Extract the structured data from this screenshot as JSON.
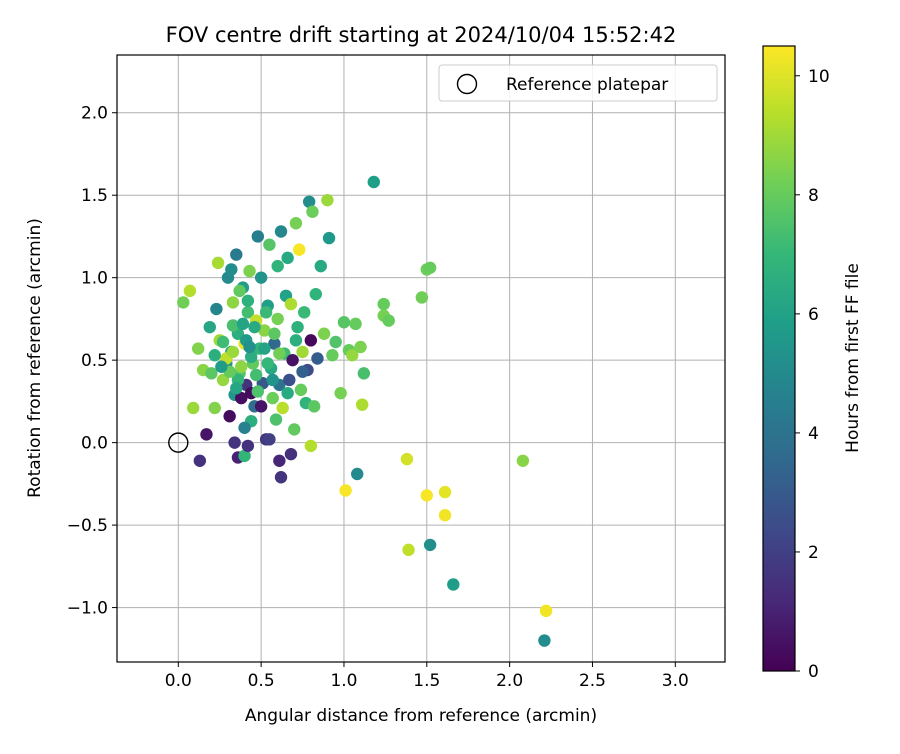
{
  "chart_data": {
    "type": "scatter",
    "title": "FOV centre drift starting at 2024/10/04 15:52:42",
    "xlabel": "Angular distance from reference (arcmin)",
    "ylabel": "Rotation from reference (arcmin)",
    "xlim": [
      -0.37,
      3.3
    ],
    "ylim": [
      -1.33,
      2.35
    ],
    "xticks": [
      0.0,
      0.5,
      1.0,
      1.5,
      2.0,
      2.5,
      3.0
    ],
    "xtick_labels": [
      "0.0",
      "0.5",
      "1.0",
      "1.5",
      "2.0",
      "2.5",
      "3.0"
    ],
    "yticks": [
      -1.0,
      -0.5,
      0.0,
      0.5,
      1.0,
      1.5,
      2.0
    ],
    "ytick_labels": [
      "−1.0",
      "−0.5",
      "0.0",
      "0.5",
      "1.0",
      "1.5",
      "2.0"
    ],
    "grid": true,
    "legend": {
      "placement": "top-right",
      "entries": [
        "Reference platepar"
      ]
    },
    "reference_point": {
      "x": 0.0,
      "y": 0.0
    },
    "colorbar": {
      "label": "Hours from first FF file",
      "colormap": "viridis",
      "range": [
        0,
        10.5
      ],
      "ticks": [
        0,
        2,
        4,
        6,
        8,
        10
      ],
      "tick_labels": [
        "0",
        "2",
        "4",
        "6",
        "8",
        "10"
      ],
      "stops": [
        "#440154",
        "#482878",
        "#3e4989",
        "#31688e",
        "#26828e",
        "#1f9e89",
        "#35b779",
        "#6ece58",
        "#b5de2b",
        "#fde725"
      ]
    },
    "points": [
      [
        0.03,
        0.85,
        8.2
      ],
      [
        0.07,
        0.92,
        9.3
      ],
      [
        0.09,
        0.21,
        8.9
      ],
      [
        0.12,
        0.57,
        8.5
      ],
      [
        0.13,
        -0.11,
        1.5
      ],
      [
        0.15,
        0.44,
        8.6
      ],
      [
        0.17,
        0.05,
        0.6
      ],
      [
        0.19,
        0.7,
        6.2
      ],
      [
        0.2,
        0.42,
        7.8
      ],
      [
        0.22,
        0.21,
        8.5
      ],
      [
        0.23,
        0.81,
        4.8
      ],
      [
        0.24,
        1.09,
        9.1
      ],
      [
        0.25,
        0.62,
        9.0
      ],
      [
        0.27,
        0.38,
        8.8
      ],
      [
        0.29,
        0.48,
        5.2
      ],
      [
        0.3,
        1.0,
        5.0
      ],
      [
        0.31,
        0.16,
        0.3
      ],
      [
        0.32,
        0.55,
        6.0
      ],
      [
        0.33,
        0.85,
        8.7
      ],
      [
        0.34,
        0.29,
        5.5
      ],
      [
        0.35,
        1.14,
        4.3
      ],
      [
        0.36,
        0.66,
        6.6
      ],
      [
        0.37,
        0.42,
        7.6
      ],
      [
        0.38,
        0.27,
        0.4
      ],
      [
        0.39,
        0.94,
        5.8
      ],
      [
        0.4,
        0.6,
        10.2
      ],
      [
        0.41,
        0.35,
        1.6
      ],
      [
        0.42,
        0.79,
        7.3
      ],
      [
        0.43,
        1.04,
        8.4
      ],
      [
        0.44,
        0.13,
        6.6
      ],
      [
        0.45,
        0.48,
        7.9
      ],
      [
        0.46,
        0.22,
        3.8
      ],
      [
        0.47,
        0.74,
        9.6
      ],
      [
        0.48,
        1.25,
        4.5
      ],
      [
        0.49,
        0.57,
        6.9
      ],
      [
        0.5,
        1.0,
        5.4
      ],
      [
        0.51,
        0.36,
        2.9
      ],
      [
        0.52,
        0.68,
        8.6
      ],
      [
        0.53,
        0.02,
        1.7
      ],
      [
        0.54,
        0.83,
        5.9
      ],
      [
        0.55,
        1.2,
        7.7
      ],
      [
        0.56,
        0.45,
        6.3
      ],
      [
        0.57,
        0.27,
        8.1
      ],
      [
        0.58,
        0.6,
        3.5
      ],
      [
        0.59,
        0.14,
        7.5
      ],
      [
        0.6,
        0.75,
        8.3
      ],
      [
        0.61,
        0.35,
        4.0
      ],
      [
        0.62,
        1.28,
        4.9
      ],
      [
        0.63,
        0.21,
        9.4
      ],
      [
        0.64,
        0.54,
        7.2
      ],
      [
        0.65,
        0.89,
        6.0
      ],
      [
        0.66,
        1.12,
        6.3
      ],
      [
        0.67,
        0.38,
        2.6
      ],
      [
        0.68,
        0.84,
        9.2
      ],
      [
        0.69,
        0.5,
        0.5
      ],
      [
        0.7,
        0.08,
        7.9
      ],
      [
        0.71,
        1.33,
        8.3
      ],
      [
        0.72,
        0.7,
        6.7
      ],
      [
        0.73,
        1.17,
        10.4
      ],
      [
        0.74,
        0.32,
        8.0
      ],
      [
        0.75,
        0.55,
        9.0
      ],
      [
        0.76,
        0.79,
        7.1
      ],
      [
        0.77,
        0.24,
        6.8
      ],
      [
        0.78,
        0.44,
        2.4
      ],
      [
        0.79,
        1.46,
        5.1
      ],
      [
        0.8,
        0.62,
        0.2
      ],
      [
        0.81,
        1.4,
        8.1
      ],
      [
        0.82,
        0.22,
        7.8
      ],
      [
        0.83,
        0.9,
        6.8
      ],
      [
        0.84,
        0.51,
        3.1
      ],
      [
        0.86,
        1.07,
        6.3
      ],
      [
        0.88,
        0.66,
        8.4
      ],
      [
        0.9,
        1.47,
        8.9
      ],
      [
        0.91,
        1.24,
        5.6
      ],
      [
        0.93,
        0.53,
        8.0
      ],
      [
        0.95,
        0.61,
        7.6
      ],
      [
        0.98,
        0.3,
        8.3
      ],
      [
        1.0,
        0.73,
        7.7
      ],
      [
        1.01,
        -0.29,
        10.4
      ],
      [
        1.03,
        0.56,
        8.0
      ],
      [
        1.05,
        0.53,
        8.8
      ],
      [
        1.07,
        0.72,
        8.0
      ],
      [
        1.08,
        -0.19,
        5.0
      ],
      [
        1.1,
        0.58,
        8.4
      ],
      [
        1.11,
        0.23,
        9.2
      ],
      [
        1.12,
        0.42,
        7.4
      ],
      [
        1.18,
        1.58,
        5.9
      ],
      [
        1.24,
        0.84,
        8.0
      ],
      [
        1.24,
        0.77,
        8.3
      ],
      [
        1.27,
        0.74,
        8.0
      ],
      [
        1.38,
        -0.1,
        9.8
      ],
      [
        1.39,
        -0.65,
        9.5
      ],
      [
        1.47,
        0.88,
        8.2
      ],
      [
        1.5,
        -0.32,
        10.4
      ],
      [
        1.5,
        1.05,
        8.1
      ],
      [
        1.52,
        1.06,
        8.0
      ],
      [
        1.52,
        -0.62,
        5.2
      ],
      [
        1.61,
        -0.3,
        10.1
      ],
      [
        1.61,
        -0.44,
        10.3
      ],
      [
        1.66,
        -0.86,
        5.8
      ],
      [
        2.08,
        -0.11,
        8.6
      ],
      [
        2.21,
        -1.2,
        5.1
      ],
      [
        2.22,
        -1.02,
        10.3
      ],
      [
        0.34,
        0.0,
        1.6
      ],
      [
        0.36,
        -0.09,
        1.0
      ],
      [
        0.4,
        -0.08,
        6.9
      ],
      [
        0.42,
        -0.02,
        1.5
      ],
      [
        0.44,
        0.3,
        0.3
      ],
      [
        0.5,
        0.22,
        0.6
      ],
      [
        0.55,
        0.02,
        2.0
      ],
      [
        0.61,
        -0.11,
        1.1
      ],
      [
        0.62,
        -0.21,
        1.6
      ],
      [
        0.68,
        -0.07,
        1.4
      ],
      [
        0.8,
        -0.02,
        9.3
      ],
      [
        0.4,
        0.09,
        4.6
      ],
      [
        0.29,
        0.51,
        9.5
      ],
      [
        0.33,
        0.71,
        7.4
      ],
      [
        0.44,
        0.52,
        6.5
      ],
      [
        0.36,
        0.38,
        6.9
      ],
      [
        0.52,
        0.57,
        6.1
      ],
      [
        0.38,
        0.46,
        8.7
      ],
      [
        0.57,
        0.38,
        5.4
      ],
      [
        0.41,
        0.62,
        5.7
      ],
      [
        0.46,
        0.7,
        6.4
      ],
      [
        0.31,
        0.43,
        8.0
      ],
      [
        0.27,
        0.61,
        7.2
      ],
      [
        0.48,
        0.31,
        7.5
      ],
      [
        0.33,
        0.55,
        8.9
      ],
      [
        0.39,
        0.72,
        6.1
      ],
      [
        0.54,
        0.48,
        7.0
      ],
      [
        0.22,
        0.53,
        6.6
      ],
      [
        0.58,
        0.66,
        7.8
      ],
      [
        0.47,
        0.41,
        7.3
      ],
      [
        0.35,
        0.33,
        6.2
      ],
      [
        0.43,
        0.58,
        5.3
      ],
      [
        0.61,
        0.54,
        8.2
      ],
      [
        0.66,
        0.3,
        6.4
      ],
      [
        0.26,
        0.46,
        5.8
      ],
      [
        0.42,
        0.86,
        6.7
      ],
      [
        0.53,
        0.79,
        7.1
      ],
      [
        0.75,
        0.43,
        3.2
      ],
      [
        0.71,
        0.62,
        6.6
      ],
      [
        0.37,
        0.92,
        7.9
      ],
      [
        0.6,
        1.07,
        6.8
      ],
      [
        0.32,
        1.05,
        5.1
      ]
    ]
  }
}
